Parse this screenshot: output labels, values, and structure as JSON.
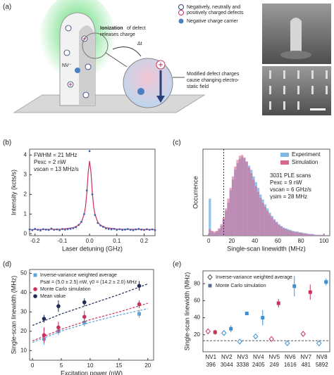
{
  "diagram": {
    "label": "(a)",
    "legend_charged": [
      "Negatively, neutrally and",
      "positively charged defects"
    ],
    "legend_carrier": "Negative charge carrier",
    "callout_top": {
      "bold": "Ionization",
      "lines": [
        "of defect",
        "releases charge"
      ]
    },
    "delta_t": "Δt",
    "nv": "NV⁻",
    "callout_bottom": [
      "Modified defect charges",
      "cause changing electro-",
      "static field"
    ]
  },
  "chart_data": [
    {
      "type": "line",
      "label": "(b)",
      "xlabel": "Laser detuning (GHz)",
      "ylabel": "Intensity (kcts/s)",
      "xlim": [
        -0.22,
        0.24
      ],
      "ylim": [
        -0.1,
        4.3
      ],
      "xticks": [
        -0.2,
        -0.1,
        {
          "value": 0,
          "label": "0.0"
        },
        0.1,
        0.2
      ],
      "yticks": [
        0,
        1,
        2,
        3,
        4
      ],
      "annotations": [
        "FWHM = 21 MHz",
        "Pexc = 2 nW",
        "vscan = 13 MHz/s"
      ],
      "scatter": {
        "color": "#3f63b0",
        "x": [
          -0.22,
          -0.21,
          -0.2,
          -0.19,
          -0.18,
          -0.17,
          -0.16,
          -0.15,
          -0.14,
          -0.13,
          -0.12,
          -0.11,
          -0.1,
          -0.09,
          -0.08,
          -0.07,
          -0.06,
          -0.05,
          -0.04,
          -0.03,
          -0.02,
          -0.01,
          0,
          0.01,
          0.02,
          0.03,
          0.04,
          0.05,
          0.06,
          0.07,
          0.08,
          0.09,
          0.1,
          0.11,
          0.12,
          0.13,
          0.14,
          0.15,
          0.16,
          0.17,
          0.18,
          0.19,
          0.2,
          0.21,
          0.22,
          0.23,
          0.24
        ],
        "values": [
          0.22,
          0.18,
          0.25,
          0.2,
          0.17,
          0.23,
          0.21,
          0.19,
          0.26,
          0.2,
          0.22,
          0.18,
          0.24,
          0.21,
          0.23,
          0.25,
          0.28,
          0.33,
          0.45,
          0.6,
          1.0,
          2.2,
          4.2,
          2.0,
          0.95,
          0.55,
          0.42,
          0.35,
          0.27,
          0.24,
          0.22,
          0.25,
          0.2,
          0.23,
          0.19,
          0.21,
          0.24,
          0.2,
          0.18,
          0.22,
          0.25,
          0.21,
          0.19,
          0.23,
          0.2,
          0.22,
          0.18
        ]
      },
      "fit": {
        "color": "#c8325a",
        "x": [
          -0.22,
          -0.1,
          -0.06,
          -0.04,
          -0.03,
          -0.02,
          -0.015,
          -0.01,
          -0.005,
          0,
          0.005,
          0.01,
          0.015,
          0.02,
          0.03,
          0.04,
          0.06,
          0.1,
          0.24
        ],
        "values": [
          0.21,
          0.23,
          0.31,
          0.43,
          0.59,
          0.98,
          1.36,
          2.09,
          3.14,
          3.7,
          3.14,
          2.09,
          1.36,
          0.98,
          0.59,
          0.43,
          0.31,
          0.23,
          0.21
        ]
      }
    },
    {
      "type": "histogram",
      "label": "(c)",
      "xlabel": "Single-scan linewidth (MHz)",
      "ylabel": "Occurrence",
      "xlim": [
        -5,
        105
      ],
      "ylim": [
        0,
        105
      ],
      "xticks": [
        0,
        20,
        40,
        60,
        80,
        100
      ],
      "vline": 13,
      "legend": "upper right",
      "annotations": [
        "3031 PLE scans",
        "Pexc = 9 nW",
        "vscan = 6 GHz/s",
        "γsim = 28 MHz"
      ],
      "bins": [
        0,
        2,
        4,
        6,
        8,
        10,
        12,
        14,
        16,
        18,
        20,
        22,
        24,
        26,
        28,
        30,
        32,
        34,
        36,
        38,
        40,
        42,
        44,
        46,
        48,
        50,
        52,
        54,
        56,
        58,
        60,
        62,
        64,
        66,
        68,
        70,
        72,
        74,
        76,
        78,
        80,
        82,
        84,
        86,
        88,
        90,
        92,
        94,
        96,
        98,
        100
      ],
      "series": [
        {
          "name": "Experiment",
          "color": "#7fb8e6",
          "values": [
            45,
            5,
            3,
            5,
            8,
            12,
            20,
            30,
            40,
            55,
            68,
            80,
            88,
            93,
            96,
            94,
            90,
            85,
            80,
            72,
            65,
            58,
            50,
            44,
            38,
            33,
            28,
            24,
            20,
            17,
            14,
            12,
            10,
            9,
            8,
            7,
            6,
            5,
            5,
            4,
            4,
            3,
            3,
            2,
            2,
            2,
            1,
            1,
            1,
            1
          ]
        },
        {
          "name": "Simulation",
          "color": "#d9668f",
          "values": [
            8,
            6,
            5,
            6,
            9,
            14,
            22,
            33,
            45,
            58,
            72,
            84,
            92,
            97,
            98,
            95,
            90,
            83,
            76,
            68,
            60,
            53,
            46,
            40,
            35,
            30,
            26,
            22,
            19,
            16,
            13,
            11,
            9,
            8,
            7,
            6,
            5,
            5,
            4,
            4,
            3,
            3,
            2,
            2,
            2,
            1,
            1,
            1,
            1,
            1
          ]
        }
      ]
    },
    {
      "type": "errorbar",
      "label": "(d)",
      "xlabel": "Excitation power (nW)",
      "ylabel": "Single-scan linewidth (MHz)",
      "xlim": [
        -0.5,
        21
      ],
      "ylim": [
        5,
        52
      ],
      "xticks": [
        0,
        5,
        10,
        15,
        20
      ],
      "yticks": [
        10,
        20,
        30,
        40,
        50
      ],
      "legend_note": "Psat = (5.0 ± 2.5) nW, γ0 = (14.2 ± 2.0) MHz",
      "series": [
        {
          "name": "Inverse-variance weighted average",
          "color": "#5ea3d9",
          "marker": "square",
          "x": [
            2,
            4.5,
            9,
            18.5
          ],
          "values": [
            16,
            20,
            24.5,
            29
          ],
          "errors": [
            3,
            2,
            2,
            2
          ],
          "fit": {
            "x": [
              0,
              5,
              10,
              15,
              20
            ],
            "values": [
              14.2,
              20.1,
              24.6,
              28.4,
              31.7
            ]
          }
        },
        {
          "name": "Monte Carlo simulation",
          "color": "#c8325a",
          "marker": "circle",
          "x": [
            2,
            4.5,
            9,
            18.5
          ],
          "values": [
            18,
            22,
            27.5,
            34
          ],
          "errors": [
            4,
            3,
            3,
            2
          ],
          "fit": {
            "x": [
              0,
              5,
              10,
              15,
              20
            ],
            "values": [
              15,
              21,
              26,
              30,
              34.5
            ]
          }
        },
        {
          "name": "Mean value",
          "color": "#1e2a52",
          "marker": "circle",
          "x": [
            2,
            4.5,
            9,
            18.5
          ],
          "values": [
            26.5,
            33,
            35,
            43.5
          ],
          "errors": [
            2,
            3,
            2,
            2.5
          ],
          "fit": {
            "x": [
              0,
              5,
              10,
              15,
              20
            ],
            "values": [
              23,
              29,
              34,
              39,
              44.5
            ]
          }
        }
      ]
    },
    {
      "type": "dot",
      "label": "(e)",
      "ylabel": "Single-scan linewidth (MHz)",
      "categories": [
        "NV1",
        "NV2",
        "NV3",
        "NV4",
        "NV5",
        "NV6",
        "NV7",
        "NV8"
      ],
      "sublabels": [
        "396",
        "3044",
        "3338",
        "2405",
        "249",
        "1616",
        "481",
        "5892"
      ],
      "ylim": [
        0,
        95
      ],
      "yticks": [
        20,
        40,
        60,
        80
      ],
      "hline": 13,
      "point_colors": [
        "#c8325a",
        "#3d8fd1",
        "#3d8fd1",
        "#3d8fd1",
        "#c8325a",
        "#3d8fd1",
        "#c8325a",
        "#3d8fd1"
      ],
      "series": [
        {
          "name": "Inverse-variance weighted average",
          "color": "#555555",
          "marker": "diamond",
          "values": [
            24,
            22,
            12,
            18,
            15,
            10,
            21,
            10
          ],
          "errors": [
            2,
            3,
            2,
            2,
            2,
            2,
            2,
            3
          ]
        },
        {
          "name": "Monte Carlo simulation",
          "color": "#5a6f8f",
          "marker": "square",
          "values": [
            23,
            27,
            45,
            40,
            57,
            77,
            70,
            82
          ],
          "errors": [
            3,
            4,
            2,
            9,
            5,
            12,
            9,
            4
          ]
        }
      ]
    }
  ]
}
